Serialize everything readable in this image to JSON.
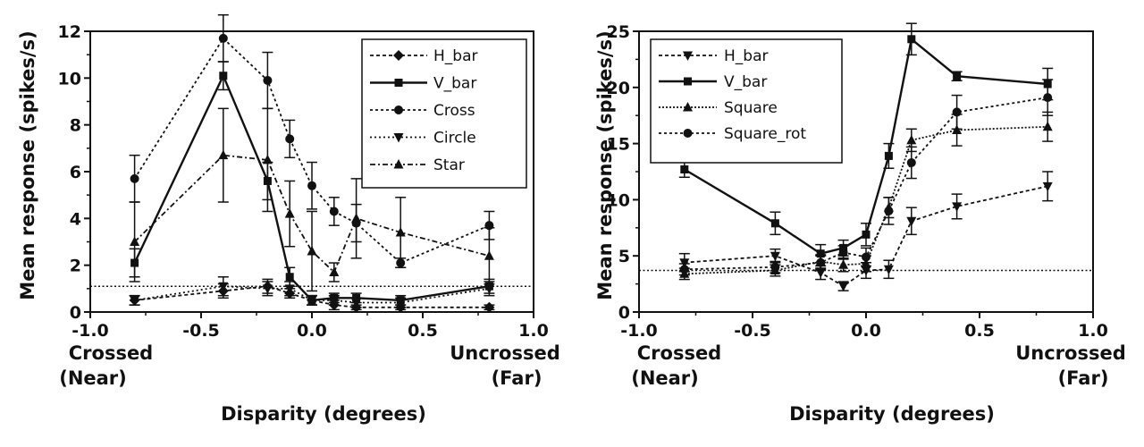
{
  "chart_data": [
    {
      "type": "line",
      "ylabel": "Mean response (spikes/s)",
      "xlabel": "Disparity (degrees)",
      "xlim": [
        -1.0,
        1.0
      ],
      "ylim": [
        0,
        12
      ],
      "xticks": [
        -1.0,
        -0.5,
        0.0,
        0.5,
        1.0
      ],
      "xtick_labels": [
        "-1.0",
        "-0.5",
        "0.0",
        "0.5",
        "1.0"
      ],
      "yticks": [
        0,
        2,
        4,
        6,
        8,
        10,
        12
      ],
      "ytick_labels": [
        "0",
        "2",
        "4",
        "6",
        "8",
        "10",
        "12"
      ],
      "x_end_labels": {
        "left": [
          "Crossed",
          "(Near)"
        ],
        "right": [
          "Uncrossed",
          "(Far)"
        ]
      },
      "baseline": 1.1,
      "legend_position": "top-right",
      "x": [
        -0.8,
        -0.4,
        -0.2,
        -0.1,
        0.0,
        0.1,
        0.2,
        0.4,
        0.8
      ],
      "series": [
        {
          "name": "H_bar",
          "marker": "diamond",
          "dash": "4 3",
          "values": [
            0.5,
            0.9,
            1.1,
            0.8,
            0.5,
            0.3,
            0.2,
            0.2,
            0.2
          ],
          "errors": [
            0.2,
            0.3,
            0.3,
            0.2,
            0.2,
            0.2,
            0.1,
            0.1,
            0.1
          ]
        },
        {
          "name": "V_bar",
          "marker": "square",
          "dash": "",
          "values": [
            2.1,
            10.1,
            5.6,
            1.5,
            0.5,
            0.6,
            0.6,
            0.5,
            1.1
          ],
          "errors": [
            0.6,
            0.6,
            0.8,
            0.4,
            0.2,
            0.2,
            0.2,
            0.2,
            0.3
          ]
        },
        {
          "name": "Cross",
          "marker": "circle",
          "dash": "3 3",
          "values": [
            5.7,
            11.7,
            9.9,
            7.4,
            5.4,
            4.3,
            3.8,
            2.1,
            3.7
          ],
          "errors": [
            1.0,
            1.0,
            1.2,
            0.8,
            1.0,
            0.6,
            0.8,
            0.2,
            0.6
          ]
        },
        {
          "name": "Circle",
          "marker": "triangle-down",
          "dash": "2 3",
          "values": [
            0.5,
            1.1,
            1.0,
            1.0,
            0.5,
            0.5,
            0.4,
            0.4,
            1.0
          ],
          "errors": [
            0.2,
            0.4,
            0.3,
            0.3,
            0.2,
            0.2,
            0.2,
            0.2,
            0.3
          ]
        },
        {
          "name": "Star",
          "marker": "triangle-up",
          "dash": "6 3 2 3",
          "values": [
            3.0,
            6.7,
            6.5,
            4.2,
            2.6,
            1.7,
            4.0,
            3.4,
            2.4
          ],
          "errors": [
            1.7,
            2.0,
            2.2,
            1.4,
            1.7,
            0.4,
            1.7,
            1.5,
            1.2
          ]
        }
      ]
    },
    {
      "type": "line",
      "ylabel": "Mean response (spikes/s)",
      "xlabel": "Disparity (degrees)",
      "xlim": [
        -1.0,
        1.0
      ],
      "ylim": [
        0,
        25
      ],
      "xticks": [
        -1.0,
        -0.5,
        0.0,
        0.5,
        1.0
      ],
      "xtick_labels": [
        "-1.0",
        "-0.5",
        "0.0",
        "0.5",
        "1.0"
      ],
      "yticks": [
        0,
        5,
        10,
        15,
        20,
        25
      ],
      "ytick_labels": [
        "0",
        "5",
        "10",
        "15",
        "20",
        "25"
      ],
      "x_end_labels": {
        "left": [
          "Crossed",
          "(Near)"
        ],
        "right": [
          "Uncrossed",
          "(Far)"
        ]
      },
      "baseline": 3.7,
      "legend_position": "top-left",
      "x": [
        -0.8,
        -0.4,
        -0.2,
        -0.1,
        0.0,
        0.1,
        0.2,
        0.4,
        0.8
      ],
      "series": [
        {
          "name": "H_bar",
          "marker": "triangle-down",
          "dash": "4 3",
          "values": [
            4.4,
            5.0,
            3.5,
            2.3,
            3.7,
            3.8,
            8.1,
            9.4,
            11.2
          ],
          "errors": [
            0.8,
            0.6,
            0.6,
            0.4,
            0.7,
            0.8,
            1.2,
            1.1,
            1.3
          ]
        },
        {
          "name": "V_bar",
          "marker": "square",
          "dash": "",
          "values": [
            12.7,
            7.9,
            5.2,
            5.7,
            6.9,
            13.9,
            24.3,
            21.0,
            20.3
          ],
          "errors": [
            0.7,
            1.0,
            0.8,
            0.7,
            1.0,
            1.1,
            1.4,
            0.4,
            1.4
          ]
        },
        {
          "name": "Square",
          "marker": "triangle-up",
          "dash": "2 2",
          "values": [
            3.4,
            3.7,
            4.5,
            4.2,
            4.3,
            9.3,
            15.3,
            16.2,
            16.5
          ],
          "errors": [
            0.5,
            0.5,
            0.6,
            0.6,
            0.7,
            0.9,
            1.0,
            1.4,
            1.3
          ]
        },
        {
          "name": "Square_rot",
          "marker": "circle",
          "dash": "3 3",
          "values": [
            3.8,
            4.0,
            4.4,
            5.3,
            4.9,
            9.0,
            13.3,
            17.8,
            19.1
          ],
          "errors": [
            0.5,
            0.5,
            0.6,
            0.6,
            0.8,
            1.2,
            1.4,
            1.5,
            1.6
          ]
        }
      ]
    }
  ]
}
